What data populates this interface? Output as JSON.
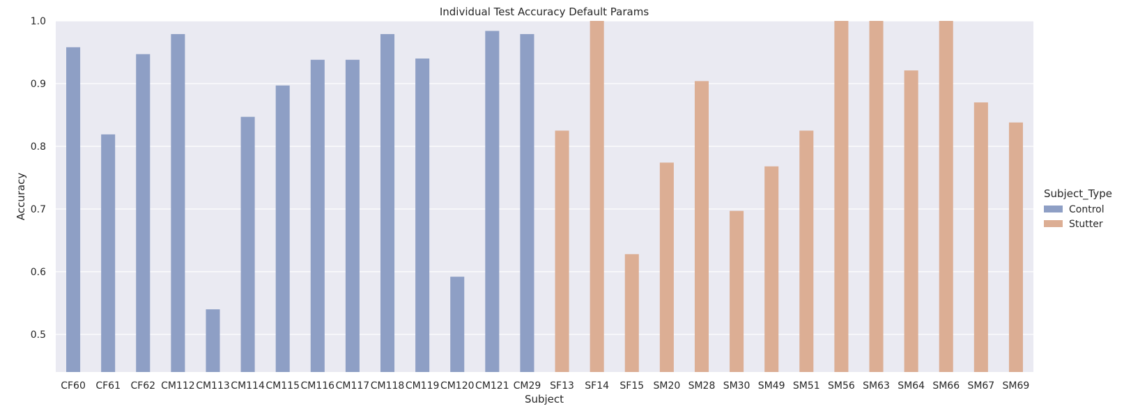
{
  "chart_data": {
    "type": "bar",
    "title": "Individual Test Accuracy Default Params",
    "xlabel": "Subject",
    "ylabel": "Accuracy",
    "ylim": [
      0.44,
      1.0
    ],
    "yticks": [
      0.5,
      0.6,
      0.7,
      0.8,
      0.9,
      1.0
    ],
    "ytick_labels": [
      "0.5",
      "0.6",
      "0.7",
      "0.8",
      "0.9",
      "1.0"
    ],
    "grid": true,
    "legend_placement": "right",
    "legend_title": "Subject_Type",
    "categories": [
      "CF60",
      "CF61",
      "CF62",
      "CM112",
      "CM113",
      "CM114",
      "CM115",
      "CM116",
      "CM117",
      "CM118",
      "CM119",
      "CM120",
      "CM121",
      "CM29",
      "SF13",
      "SF14",
      "SF15",
      "SM20",
      "SM28",
      "SM30",
      "SM49",
      "SM51",
      "SM56",
      "SM63",
      "SM64",
      "SM66",
      "SM67",
      "SM69"
    ],
    "series": [
      {
        "name": "Control",
        "color": "#8e9fc5",
        "values": [
          0.958,
          0.819,
          0.947,
          0.979,
          0.54,
          0.847,
          0.897,
          0.938,
          0.938,
          0.979,
          0.94,
          0.592,
          0.984,
          0.979,
          null,
          null,
          null,
          null,
          null,
          null,
          null,
          null,
          null,
          null,
          null,
          null,
          null,
          null
        ]
      },
      {
        "name": "Stutter",
        "color": "#dcae94",
        "values": [
          null,
          null,
          null,
          null,
          null,
          null,
          null,
          null,
          null,
          null,
          null,
          null,
          null,
          null,
          0.825,
          1.0,
          0.628,
          0.774,
          0.904,
          0.697,
          0.768,
          0.825,
          1.0,
          1.0,
          0.921,
          1.0,
          0.87,
          0.838
        ]
      }
    ]
  }
}
